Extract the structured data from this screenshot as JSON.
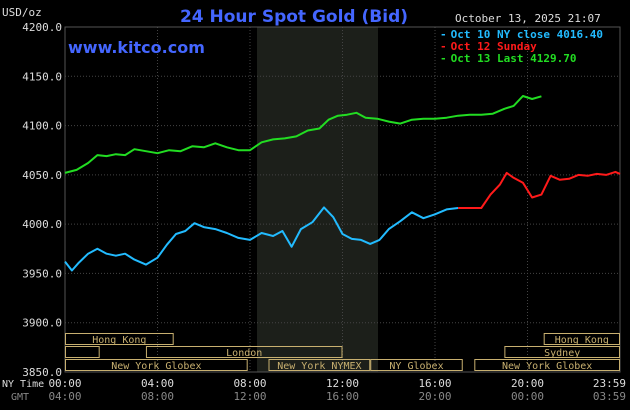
{
  "chart_data": {
    "type": "line",
    "title": "24 Hour Spot Gold (Bid)",
    "source": "www.kitco.com",
    "timestamp": "October 13, 2025 21:07",
    "ylabel": "USD/oz",
    "ylim": [
      3850,
      4200
    ],
    "y_ticks": [
      "4200.0",
      "4150.0",
      "4100.0",
      "4050.0",
      "4000.0",
      "3950.0",
      "3900.0",
      "3850.0"
    ],
    "x_ticks_ny": [
      "00:00",
      "04:00",
      "08:00",
      "12:00",
      "16:00",
      "20:00",
      "23:59"
    ],
    "x_ticks_gmt": [
      "04:00",
      "08:00",
      "12:00",
      "16:00",
      "20:00",
      "00:00",
      "03:59"
    ],
    "x_label_ny": "NY Time",
    "x_label_gmt": "GMT",
    "grid": true,
    "colors": {
      "oct10": "#22bbff",
      "oct12": "#ff1a1a",
      "oct13": "#22dd22",
      "title": "#4466ff",
      "nymex_shade": "#1c1f1a"
    },
    "legend": [
      {
        "label": "Oct 10 NY close 4016.40",
        "color": "#22bbff"
      },
      {
        "label": "Oct 12 Sunday",
        "color": "#ff1a1a"
      },
      {
        "label": "Oct 13 Last 4129.70",
        "color": "#22dd22"
      }
    ],
    "series": [
      {
        "name": "Oct 10 NY close 4016.40",
        "color": "#22bbff",
        "x": [
          0.0,
          0.3,
          0.6,
          1.0,
          1.4,
          1.8,
          2.2,
          2.6,
          3.0,
          3.5,
          4.0,
          4.4,
          4.8,
          5.2,
          5.6,
          6.0,
          6.5,
          7.0,
          7.5,
          8.0,
          8.5,
          9.0,
          9.4,
          9.8,
          10.2,
          10.7,
          11.2,
          11.6,
          12.0,
          12.4,
          12.8,
          13.2,
          13.6,
          14.0,
          14.5,
          15.0,
          15.5,
          16.0,
          16.5,
          17.0
        ],
        "y": [
          3962,
          3953,
          3961,
          3970,
          3975,
          3970,
          3968,
          3970,
          3964,
          3959,
          3966,
          3979,
          3990,
          3993,
          4001,
          3997,
          3995,
          3991,
          3986,
          3984,
          3991,
          3988,
          3993,
          3977,
          3995,
          4002,
          4017,
          4007,
          3990,
          3985,
          3984,
          3980,
          3984,
          3995,
          4003,
          4012,
          4006,
          4010,
          4015,
          4016.4
        ]
      },
      {
        "name": "Oct 12 Sunday",
        "color": "#ff1a1a",
        "x": [
          17.0,
          18.0,
          18.4,
          18.8,
          19.1,
          19.4,
          19.8,
          20.2,
          20.6,
          21.0,
          21.4,
          21.8,
          22.2,
          22.6,
          23.0,
          23.4,
          23.8,
          24.0
        ],
        "y": [
          4016.4,
          4016.4,
          4030,
          4040,
          4052,
          4047,
          4042,
          4027,
          4030,
          4049,
          4045,
          4046,
          4050,
          4049,
          4051,
          4050,
          4053,
          4051
        ]
      },
      {
        "name": "Oct 13 Last 4129.70",
        "color": "#22dd22",
        "x": [
          0.0,
          0.5,
          1.0,
          1.4,
          1.8,
          2.2,
          2.6,
          3.0,
          3.5,
          4.0,
          4.5,
          5.0,
          5.5,
          6.0,
          6.5,
          7.0,
          7.5,
          8.0,
          8.5,
          9.0,
          9.5,
          10.0,
          10.5,
          11.0,
          11.4,
          11.8,
          12.2,
          12.6,
          13.0,
          13.5,
          14.0,
          14.5,
          15.0,
          15.5,
          16.0,
          16.5,
          17.0,
          17.5,
          18.0,
          18.5,
          19.0,
          19.4,
          19.8,
          20.2,
          20.6
        ],
        "y": [
          4052,
          4055,
          4062,
          4070,
          4069,
          4071,
          4070,
          4076,
          4074,
          4072,
          4075,
          4074,
          4079,
          4078,
          4082,
          4078,
          4075,
          4075,
          4083,
          4086,
          4087,
          4089,
          4095,
          4097,
          4106,
          4110,
          4111,
          4113,
          4108,
          4107,
          4104,
          4102,
          4106,
          4107,
          4107,
          4108,
          4110,
          4111,
          4111,
          4112,
          4117,
          4120,
          4130,
          4127,
          4129.7
        ]
      }
    ],
    "sessions_top": [
      "Hong Kong",
      "Hong Kong"
    ],
    "sessions_mid": [
      "London",
      "Sydney"
    ],
    "sessions_bottom": [
      "New York Globex",
      "New York NYMEX",
      "NY Globex",
      "New York Globex"
    ]
  }
}
